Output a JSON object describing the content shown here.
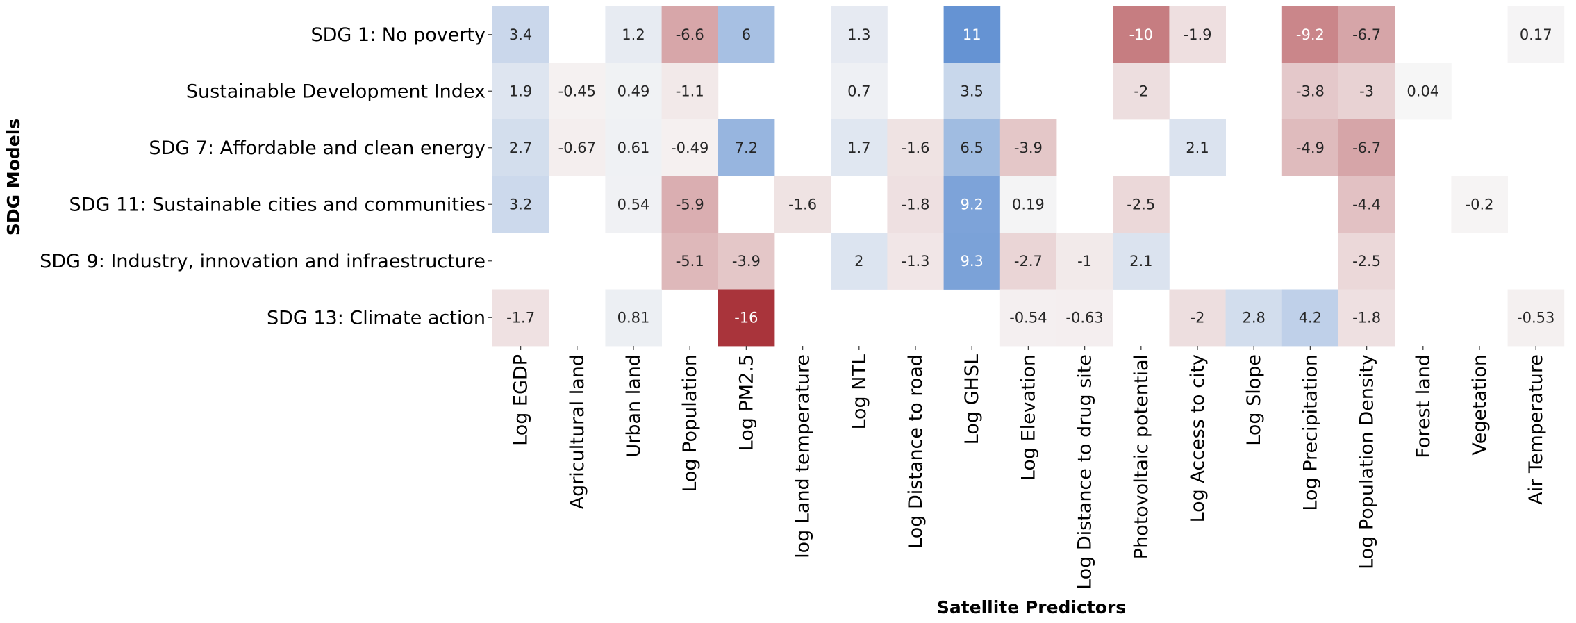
{
  "chart_data": {
    "type": "heatmap",
    "title": "",
    "xlabel": "Satellite Predictors",
    "ylabel": "SDG Models",
    "colormap": "vlag_r",
    "colors": {
      "positive": "#2266c3",
      "neutral": "#f7f6f6",
      "negative": "#a9343b"
    },
    "value_range": [
      -16,
      16
    ],
    "rows": [
      "SDG 1: No poverty",
      "Sustainable Development Index",
      "SDG 7: Affordable and clean energy",
      "SDG 11: Sustainable cities and communities",
      "SDG 9: Industry, innovation and infraestructure",
      "SDG 13: Climate action"
    ],
    "columns": [
      "Log EGDP",
      "Agricultural land",
      "Urban land",
      "Log Population",
      "Log PM2.5",
      "log Land temperature",
      "Log NTL",
      "Log Distance to road",
      "Log GHSL",
      "Log Elevation",
      "Log Distance to drug site",
      "Photovoltaic potential",
      "Log Access to city",
      "Log Slope",
      "Log Precipitation",
      "Log Population Density",
      "Forest land",
      "Vegetation",
      "Air Temperature"
    ],
    "values": [
      [
        3.4,
        null,
        1.2,
        -6.6,
        6,
        null,
        1.3,
        null,
        11,
        null,
        null,
        -10,
        -1.9,
        null,
        -9.2,
        -6.7,
        null,
        null,
        0.17
      ],
      [
        1.9,
        -0.45,
        0.49,
        -1.1,
        null,
        null,
        0.7,
        null,
        3.5,
        null,
        null,
        -2,
        null,
        null,
        -3.8,
        -3,
        0.04,
        null,
        null
      ],
      [
        2.7,
        -0.67,
        0.61,
        -0.49,
        7.2,
        null,
        1.7,
        -1.6,
        6.5,
        -3.9,
        null,
        null,
        2.1,
        null,
        -4.9,
        -6.7,
        null,
        null,
        null
      ],
      [
        3.2,
        null,
        0.54,
        -5.9,
        null,
        -1.6,
        null,
        -1.8,
        9.2,
        0.19,
        null,
        -2.5,
        null,
        null,
        null,
        -4.4,
        null,
        -0.2,
        null
      ],
      [
        null,
        null,
        null,
        -5.1,
        -3.9,
        null,
        2,
        -1.3,
        9.3,
        -2.7,
        -1,
        2.1,
        null,
        null,
        null,
        -2.5,
        null,
        null,
        null
      ],
      [
        -1.7,
        null,
        0.81,
        null,
        -16,
        null,
        null,
        null,
        null,
        -0.54,
        -0.63,
        null,
        -2,
        2.8,
        4.2,
        -1.8,
        null,
        null,
        -0.53
      ]
    ]
  }
}
